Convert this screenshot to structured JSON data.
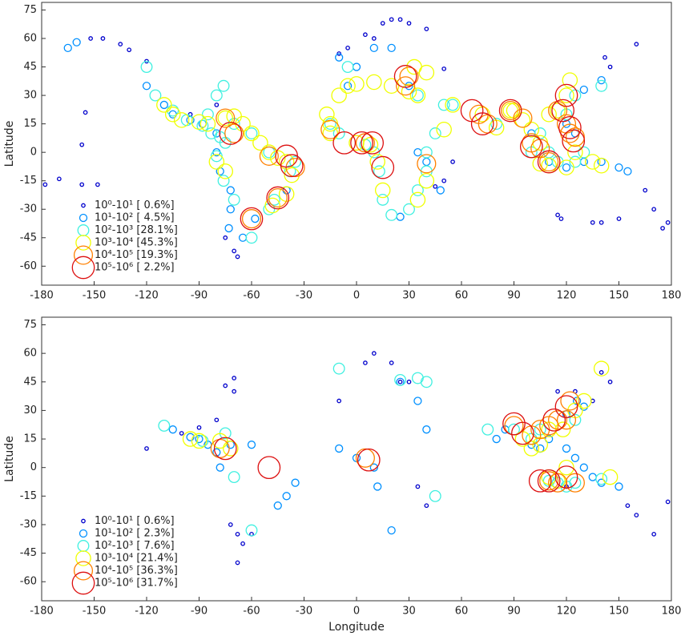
{
  "chart_data": [
    {
      "type": "scatter",
      "y_label": "Latitude",
      "xlim": [
        -180,
        180
      ],
      "ylim": [
        -70,
        79
      ],
      "xticks": [
        -180,
        -150,
        -120,
        -90,
        -60,
        -30,
        0,
        30,
        60,
        90,
        120,
        150,
        180
      ],
      "yticks": [
        -60,
        -45,
        -30,
        -15,
        0,
        15,
        30,
        45,
        60,
        75
      ],
      "legend": "lower left",
      "series": [
        {
          "name": "10⁰-10¹ [ 0.6%]",
          "color": "#0000cc",
          "x": [
            -178,
            -170,
            -155,
            -157,
            -152,
            -145,
            -135,
            -130,
            -120,
            -95,
            -80,
            -75,
            -70,
            -68,
            5,
            10,
            15,
            20,
            25,
            30,
            40,
            50,
            -10,
            -5,
            142,
            145,
            160,
            165,
            170,
            175,
            178,
            150,
            140,
            115,
            117,
            135,
            -157,
            -148,
            55,
            45,
            50
          ],
          "values": [
            -17,
            -14,
            21,
            4,
            60,
            60,
            57,
            54,
            48,
            20,
            25,
            -45,
            -52,
            -55,
            62,
            60,
            68,
            70,
            70,
            68,
            65,
            44,
            52,
            55,
            50,
            45,
            57,
            -20,
            -30,
            -40,
            -37,
            -35,
            -37,
            -33,
            -35,
            -37,
            -17,
            -17,
            -5,
            -18,
            -15
          ]
        },
        {
          "name": "10¹-10² [ 4.5%]",
          "color": "#0090ff",
          "x": [
            -120,
            -110,
            -105,
            -95,
            -88,
            -80,
            -80,
            -78,
            -72,
            -72,
            -73,
            -65,
            -58,
            -40,
            -10,
            0,
            10,
            20,
            -5,
            30,
            35,
            40,
            48,
            100,
            110,
            120,
            130,
            140,
            150,
            155,
            120,
            125,
            130,
            140,
            25,
            -165,
            -160
          ],
          "values": [
            35,
            25,
            20,
            17,
            15,
            10,
            0,
            -10,
            -20,
            -30,
            -40,
            -45,
            -35,
            -20,
            50,
            45,
            55,
            55,
            35,
            35,
            0,
            -5,
            -20,
            10,
            -5,
            -8,
            -5,
            -5,
            -8,
            -10,
            15,
            10,
            33,
            38,
            -34,
            55,
            58
          ]
        },
        {
          "name": "10²-10³ [28.1%]",
          "color": "#40f0e0",
          "x": [
            -120,
            -115,
            -105,
            -97,
            -88,
            -83,
            -78,
            -75,
            -80,
            -76,
            -70,
            -60,
            -50,
            -47,
            -38,
            -35,
            -50,
            -60,
            -70,
            -85,
            -80,
            -76,
            -10,
            -15,
            5,
            10,
            13,
            15,
            20,
            30,
            35,
            40,
            40,
            45,
            35,
            50,
            55,
            80,
            100,
            105,
            110,
            115,
            125,
            130,
            120,
            125,
            140,
            -5
          ],
          "values": [
            45,
            30,
            22,
            17,
            14,
            10,
            8,
            5,
            -2,
            -15,
            -25,
            -45,
            -30,
            -25,
            -10,
            -5,
            0,
            10,
            15,
            20,
            30,
            35,
            10,
            15,
            4,
            0,
            -10,
            -25,
            -33,
            -30,
            -20,
            -10,
            0,
            10,
            30,
            25,
            25,
            15,
            0,
            10,
            0,
            -5,
            -5,
            0,
            20,
            30,
            35,
            45
          ]
        },
        {
          "name": "10³-10⁴ [45.3%]",
          "color": "#f0ff00",
          "x": [
            -110,
            -105,
            -100,
            -90,
            -85,
            -75,
            -70,
            -65,
            -60,
            -55,
            -50,
            -45,
            -40,
            -37,
            -40,
            -48,
            -75,
            -80,
            -15,
            -17,
            -10,
            -5,
            0,
            10,
            20,
            30,
            35,
            33,
            40,
            -15,
            0,
            8,
            12,
            15,
            35,
            40,
            50,
            55,
            72,
            80,
            88,
            90,
            95,
            100,
            105,
            110,
            115,
            120,
            122,
            105,
            110,
            120,
            125,
            135,
            140
          ],
          "values": [
            25,
            20,
            17,
            16,
            15,
            18,
            19,
            15,
            10,
            5,
            0,
            -3,
            -5,
            -12,
            -22,
            -28,
            -10,
            -5,
            15,
            20,
            30,
            35,
            36,
            37,
            35,
            32,
            30,
            45,
            42,
            10,
            5,
            4,
            -5,
            -20,
            -25,
            -15,
            12,
            25,
            20,
            13,
            22,
            22,
            17,
            12,
            5,
            20,
            22,
            30,
            38,
            -6,
            -7,
            -8,
            0,
            -5,
            -7
          ]
        },
        {
          "name": "10⁴-10⁵ [19.3%]",
          "color": "#ff8000",
          "x": [
            -75,
            -70,
            -45,
            -60,
            30,
            28,
            70,
            75,
            88,
            100,
            105,
            115,
            120,
            122,
            125,
            110,
            -35,
            -50,
            -15,
            5,
            40,
            95
          ],
          "values": [
            18,
            10,
            -24,
            -35,
            40,
            35,
            20,
            15,
            22,
            5,
            2,
            22,
            15,
            10,
            8,
            -5,
            -8,
            -2,
            12,
            5,
            -6,
            18
          ]
        },
        {
          "name": "10⁵-10⁶ [ 2.2%]",
          "color": "#dd1010",
          "x": [
            -72,
            -45,
            -37,
            -60,
            -40,
            3,
            9,
            15,
            28,
            66,
            72,
            88,
            100,
            110,
            122,
            124,
            118,
            120,
            -7
          ],
          "values": [
            10,
            -24,
            -7,
            -35,
            -2,
            5,
            5,
            -8,
            40,
            22,
            15,
            22,
            3,
            -5,
            13,
            6,
            22,
            30,
            5
          ]
        }
      ]
    },
    {
      "type": "scatter",
      "x_label": "Longitude",
      "y_label": "Latitude",
      "xlim": [
        -180,
        180
      ],
      "ylim": [
        -70,
        79
      ],
      "xticks": [
        -180,
        -150,
        -120,
        -90,
        -60,
        -30,
        0,
        30,
        60,
        90,
        120,
        150,
        180
      ],
      "yticks": [
        -60,
        -45,
        -30,
        -15,
        0,
        15,
        30,
        45,
        60,
        75
      ],
      "legend": "lower left",
      "series": [
        {
          "name": "10⁰-10¹ [ 0.6%]",
          "color": "#0000cc",
          "x": [
            -75,
            -70,
            -70,
            -80,
            -60,
            -65,
            -68,
            5,
            10,
            20,
            25,
            30,
            -10,
            140,
            145,
            155,
            160,
            170,
            178,
            120,
            -72,
            -68,
            115,
            125,
            135,
            35,
            40,
            -120,
            -100,
            -90
          ],
          "values": [
            43,
            40,
            47,
            25,
            -35,
            -40,
            -50,
            55,
            60,
            55,
            45,
            45,
            35,
            50,
            45,
            -20,
            -25,
            -35,
            -18,
            -10,
            -30,
            -35,
            40,
            40,
            35,
            -10,
            -20,
            10,
            18,
            21
          ]
        },
        {
          "name": "10¹-10² [ 2.3%]",
          "color": "#0090ff",
          "x": [
            -105,
            -95,
            -90,
            -85,
            -80,
            -78,
            -72,
            -60,
            -45,
            -40,
            -35,
            -10,
            0,
            10,
            12,
            20,
            25,
            35,
            40,
            80,
            85,
            100,
            105,
            110,
            120,
            125,
            130,
            135,
            140,
            150,
            120,
            126,
            130
          ],
          "values": [
            20,
            16,
            15,
            12,
            8,
            0,
            12,
            12,
            -20,
            -15,
            -8,
            10,
            5,
            0,
            -10,
            -33,
            45,
            35,
            20,
            15,
            20,
            12,
            10,
            15,
            10,
            5,
            0,
            -5,
            -8,
            -10,
            28,
            35,
            32
          ]
        },
        {
          "name": "10²-10³ [ 7.6%]",
          "color": "#40f0e0",
          "x": [
            -110,
            -88,
            -75,
            -70,
            -10,
            25,
            35,
            40,
            75,
            90,
            100,
            105,
            110,
            115,
            120,
            125,
            140,
            -60,
            45,
            125
          ],
          "values": [
            22,
            14,
            18,
            -5,
            52,
            46,
            47,
            45,
            20,
            20,
            15,
            20,
            -7,
            -8,
            -10,
            -8,
            -6,
            -33,
            -15,
            25
          ]
        },
        {
          "name": "10³-10⁴ [21.4%]",
          "color": "#f0ff00",
          "x": [
            -95,
            -90,
            -78,
            -72,
            95,
            100,
            105,
            110,
            115,
            120,
            125,
            130,
            140,
            145,
            118,
            110
          ],
          "values": [
            15,
            14,
            14,
            10,
            15,
            10,
            12,
            -5,
            -7,
            0,
            30,
            35,
            52,
            -5,
            20,
            20
          ]
        },
        {
          "name": "10⁴-10⁵ [36.3%]",
          "color": "#ff8000",
          "x": [
            -78,
            5,
            90,
            100,
            105,
            110,
            115,
            120,
            122,
            110,
            115,
            125
          ],
          "values": [
            10,
            5,
            22,
            17,
            20,
            22,
            25,
            25,
            35,
            -7,
            -8,
            -8
          ]
        },
        {
          "name": "10⁵-10⁶ [31.7%]",
          "color": "#dd1010",
          "x": [
            -75,
            -50,
            7,
            90,
            95,
            113,
            120,
            105,
            110,
            120
          ],
          "values": [
            10,
            0,
            4,
            23,
            18,
            25,
            32,
            -7,
            -7,
            -5
          ]
        }
      ]
    }
  ]
}
